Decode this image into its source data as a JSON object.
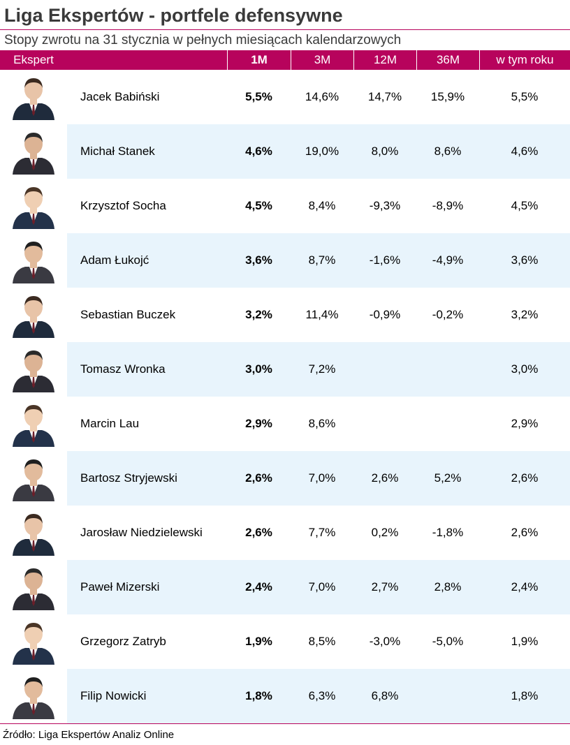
{
  "title": "Liga Ekspertów - portfele defensywne",
  "subtitle": "Stopy zwrotu na 31 stycznia w pełnych miesiącach kalendarzowych",
  "accent_color": "#b7035c",
  "band_color": "#e8f4fc",
  "columns": [
    "Ekspert",
    "1M",
    "3M",
    "12M",
    "36M",
    "w tym roku"
  ],
  "rows": [
    {
      "name": "Jacek Babiński",
      "m1": "5,5%",
      "m3": "14,6%",
      "m12": "14,7%",
      "m36": "15,9%",
      "ytd": "5,5%",
      "photo": "person-photo-icon"
    },
    {
      "name": "Michał Stanek",
      "m1": "4,6%",
      "m3": "19,0%",
      "m12": "8,0%",
      "m36": "8,6%",
      "ytd": "4,6%",
      "photo": "person-photo-icon"
    },
    {
      "name": "Krzysztof Socha",
      "m1": "4,5%",
      "m3": "8,4%",
      "m12": "-9,3%",
      "m36": "-8,9%",
      "ytd": "4,5%",
      "photo": "person-photo-icon"
    },
    {
      "name": "Adam Łukojć",
      "m1": "3,6%",
      "m3": "8,7%",
      "m12": "-1,6%",
      "m36": "-4,9%",
      "ytd": "3,6%",
      "photo": "person-photo-icon"
    },
    {
      "name": "Sebastian Buczek",
      "m1": "3,2%",
      "m3": "11,4%",
      "m12": "-0,9%",
      "m36": "-0,2%",
      "ytd": "3,2%",
      "photo": "person-photo-icon"
    },
    {
      "name": "Tomasz Wronka",
      "m1": "3,0%",
      "m3": "7,2%",
      "m12": "",
      "m36": "",
      "ytd": "3,0%",
      "photo": "person-photo-icon"
    },
    {
      "name": "Marcin Lau",
      "m1": "2,9%",
      "m3": "8,6%",
      "m12": "",
      "m36": "",
      "ytd": "2,9%",
      "photo": "person-photo-icon"
    },
    {
      "name": "Bartosz Stryjewski",
      "m1": "2,6%",
      "m3": "7,0%",
      "m12": "2,6%",
      "m36": "5,2%",
      "ytd": "2,6%",
      "photo": "person-photo-icon"
    },
    {
      "name": "Jarosław Niedzielewski",
      "m1": "2,6%",
      "m3": "7,7%",
      "m12": "0,2%",
      "m36": "-1,8%",
      "ytd": "2,6%",
      "photo": "person-photo-icon"
    },
    {
      "name": "Paweł Mizerski",
      "m1": "2,4%",
      "m3": "7,0%",
      "m12": "2,7%",
      "m36": "2,8%",
      "ytd": "2,4%",
      "photo": "person-photo-icon"
    },
    {
      "name": "Grzegorz Zatryb",
      "m1": "1,9%",
      "m3": "8,5%",
      "m12": "-3,0%",
      "m36": "-5,0%",
      "ytd": "1,9%",
      "photo": "person-photo-icon"
    },
    {
      "name": "Filip Nowicki",
      "m1": "1,8%",
      "m3": "6,3%",
      "m12": "6,8%",
      "m36": "",
      "ytd": "1,8%",
      "photo": "person-photo-icon"
    }
  ],
  "source": "Źródło: Liga Ekspertów Analiz Online"
}
